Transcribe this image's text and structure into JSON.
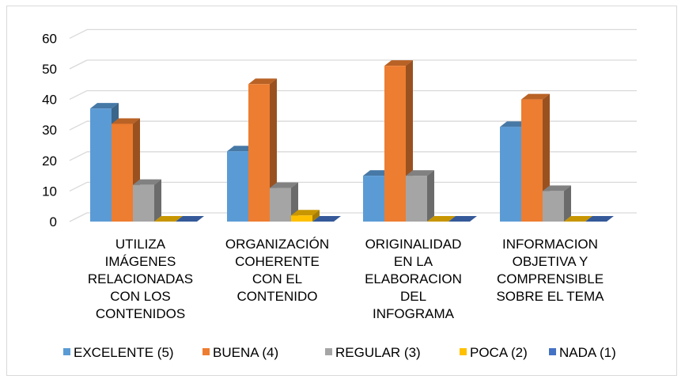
{
  "chart_data": {
    "type": "bar",
    "title": "",
    "xlabel": "",
    "ylabel": "",
    "ylim": [
      0,
      60
    ],
    "yticks": [
      0,
      10,
      20,
      30,
      40,
      50,
      60
    ],
    "grid": true,
    "legend_position": "bottom",
    "style": "3d-clustered-column",
    "categories": [
      [
        "UTILIZA",
        "IMÁGENES",
        "RELACIONADAS",
        "CON LOS",
        "CONTENIDOS"
      ],
      [
        "ORGANIZACIÓN",
        "COHERENTE",
        "CON EL",
        "CONTENIDO"
      ],
      [
        "ORIGINALIDAD",
        "EN LA",
        "ELABORACION",
        "DEL",
        "INFOGRAMA"
      ],
      [
        "INFORMACION",
        "OBJETIVA Y",
        "COMPRENSIBLE",
        "SOBRE EL TEMA"
      ]
    ],
    "series": [
      {
        "name": "EXCELENTE (5)",
        "color": "#5b9bd5",
        "values": [
          37,
          23,
          15,
          31
        ]
      },
      {
        "name": "BUENA (4)",
        "color": "#ed7d31",
        "values": [
          32,
          45,
          51,
          40
        ]
      },
      {
        "name": "REGULAR (3)",
        "color": "#a5a5a5",
        "values": [
          12,
          11,
          15,
          10
        ]
      },
      {
        "name": "POCA (2)",
        "color": "#ffc000",
        "values": [
          0,
          2,
          0,
          0
        ]
      },
      {
        "name": "NADA (1)",
        "color": "#4472c4",
        "values": [
          0,
          0,
          0,
          0
        ]
      }
    ]
  }
}
